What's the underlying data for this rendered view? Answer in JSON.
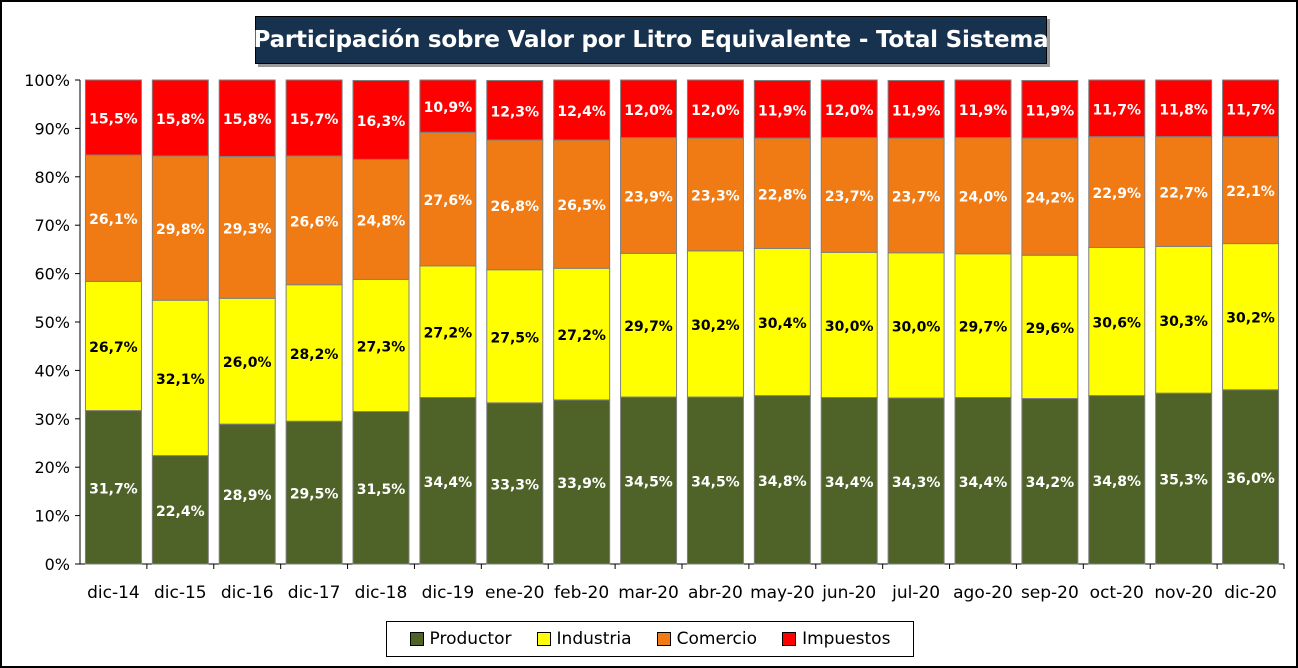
{
  "chart_data": {
    "type": "bar",
    "stacked": true,
    "title": "Participación sobre Valor por Litro Equivalente - Total Sistema",
    "categories": [
      "dic-14",
      "dic-15",
      "dic-16",
      "dic-17",
      "dic-18",
      "dic-19",
      "ene-20",
      "feb-20",
      "mar-20",
      "abr-20",
      "may-20",
      "jun-20",
      "jul-20",
      "ago-20",
      "sep-20",
      "oct-20",
      "nov-20",
      "dic-20"
    ],
    "series": [
      {
        "name": "Productor",
        "color": "#4f6228",
        "label_color": "#ffffff",
        "values": [
          31.7,
          22.4,
          28.9,
          29.5,
          31.5,
          34.4,
          33.3,
          33.9,
          34.5,
          34.5,
          34.8,
          34.4,
          34.3,
          34.4,
          34.2,
          34.8,
          35.3,
          36.0
        ],
        "labels": [
          "31,7%",
          "22,4%",
          "28,9%",
          "29,5%",
          "31,5%",
          "34,4%",
          "33,3%",
          "33,9%",
          "34,5%",
          "34,5%",
          "34,8%",
          "34,4%",
          "34,3%",
          "34,4%",
          "34,2%",
          "34,8%",
          "35,3%",
          "36,0%"
        ]
      },
      {
        "name": "Industria",
        "color": "#ffff00",
        "label_color": "#000000",
        "values": [
          26.7,
          32.1,
          26.0,
          28.2,
          27.3,
          27.2,
          27.5,
          27.2,
          29.7,
          30.2,
          30.4,
          30.0,
          30.0,
          29.7,
          29.6,
          30.6,
          30.3,
          30.2
        ],
        "labels": [
          "26,7%",
          "32,1%",
          "26,0%",
          "28,2%",
          "27,3%",
          "27,2%",
          "27,5%",
          "27,2%",
          "29,7%",
          "30,2%",
          "30,4%",
          "30,0%",
          "30,0%",
          "29,7%",
          "29,6%",
          "30,6%",
          "30,3%",
          "30,2%"
        ]
      },
      {
        "name": "Comercio",
        "color": "#f07b14",
        "label_color": "#ffffff",
        "values": [
          26.1,
          29.8,
          29.3,
          26.6,
          24.8,
          27.6,
          26.8,
          26.5,
          23.9,
          23.3,
          22.8,
          23.7,
          23.7,
          24.0,
          24.2,
          22.9,
          22.7,
          22.1
        ],
        "labels": [
          "26,1%",
          "29,8%",
          "29,3%",
          "26,6%",
          "24,8%",
          "27,6%",
          "26,8%",
          "26,5%",
          "23,9%",
          "23,3%",
          "22,8%",
          "23,7%",
          "23,7%",
          "24,0%",
          "24,2%",
          "22,9%",
          "22,7%",
          "22,1%"
        ]
      },
      {
        "name": "Impuestos",
        "color": "#ff0000",
        "label_color": "#ffffff",
        "values": [
          15.5,
          15.8,
          15.8,
          15.7,
          16.3,
          10.9,
          12.3,
          12.4,
          12.0,
          12.0,
          11.9,
          12.0,
          11.9,
          11.9,
          11.9,
          11.7,
          11.8,
          11.7
        ],
        "labels": [
          "15,5%",
          "15,8%",
          "15,8%",
          "15,7%",
          "16,3%",
          "10,9%",
          "12,3%",
          "12,4%",
          "12,0%",
          "12,0%",
          "11,9%",
          "12,0%",
          "11,9%",
          "11,9%",
          "11,9%",
          "11,7%",
          "11,8%",
          "11,7%"
        ]
      }
    ],
    "ylim": [
      0,
      100
    ],
    "yticks": [
      "0%",
      "10%",
      "20%",
      "30%",
      "40%",
      "50%",
      "60%",
      "70%",
      "80%",
      "90%",
      "100%"
    ],
    "grid": false,
    "legend_position": "bottom"
  }
}
